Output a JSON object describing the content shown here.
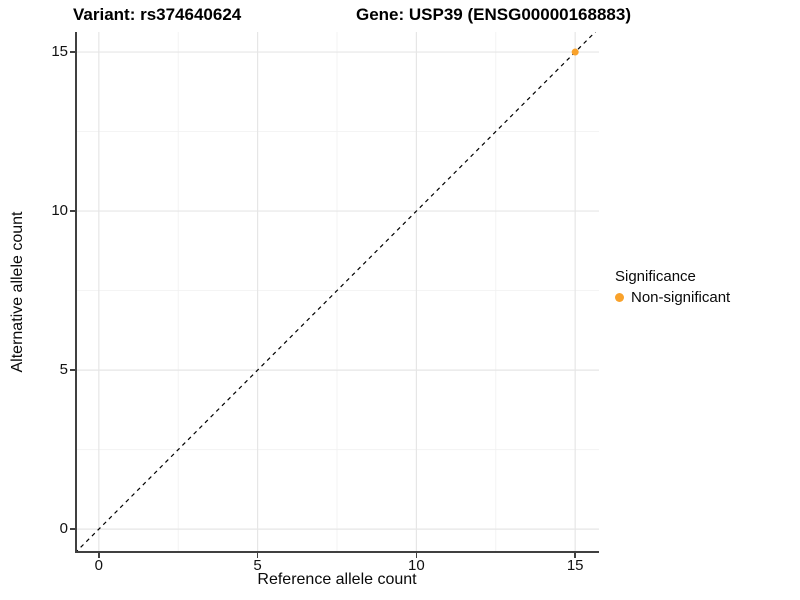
{
  "titles": {
    "variant": "Variant: rs374640624",
    "gene": "Gene: USP39 (ENSG00000168883)"
  },
  "axes": {
    "x_label": "Reference allele count",
    "y_label": "Alternative allele count"
  },
  "legend": {
    "title": "Significance",
    "items": [
      {
        "label": "Non-significant",
        "color": "#F9A22B"
      }
    ]
  },
  "colors": {
    "point": "#F9A22B",
    "axis_line": "#404040",
    "grid_major": "#E6E6E6",
    "grid_minor": "#F2F2F2",
    "reference_line": "#000000",
    "background": "#FFFFFF"
  },
  "chart_data": {
    "type": "scatter",
    "title": "Variant: rs374640624   |   Gene: USP39 (ENSG00000168883)",
    "xlabel": "Reference allele count",
    "ylabel": "Alternative allele count",
    "xlim": [
      -0.75,
      15.75
    ],
    "ylim": [
      -0.75,
      15.63
    ],
    "x_ticks": [
      0,
      5,
      10,
      15
    ],
    "y_ticks": [
      0,
      5,
      10,
      15
    ],
    "x_minor_ticks": [
      2.5,
      7.5,
      12.5
    ],
    "y_minor_ticks": [
      2.5,
      7.5,
      12.5
    ],
    "grid": true,
    "legend_position": "right",
    "legend_title": "Significance",
    "series": [
      {
        "name": "Non-significant",
        "color": "#F9A22B",
        "points": [
          {
            "x": 15,
            "y": 15
          }
        ]
      }
    ],
    "reference_line": {
      "type": "identity",
      "style": "dashed",
      "color": "#000000"
    }
  }
}
